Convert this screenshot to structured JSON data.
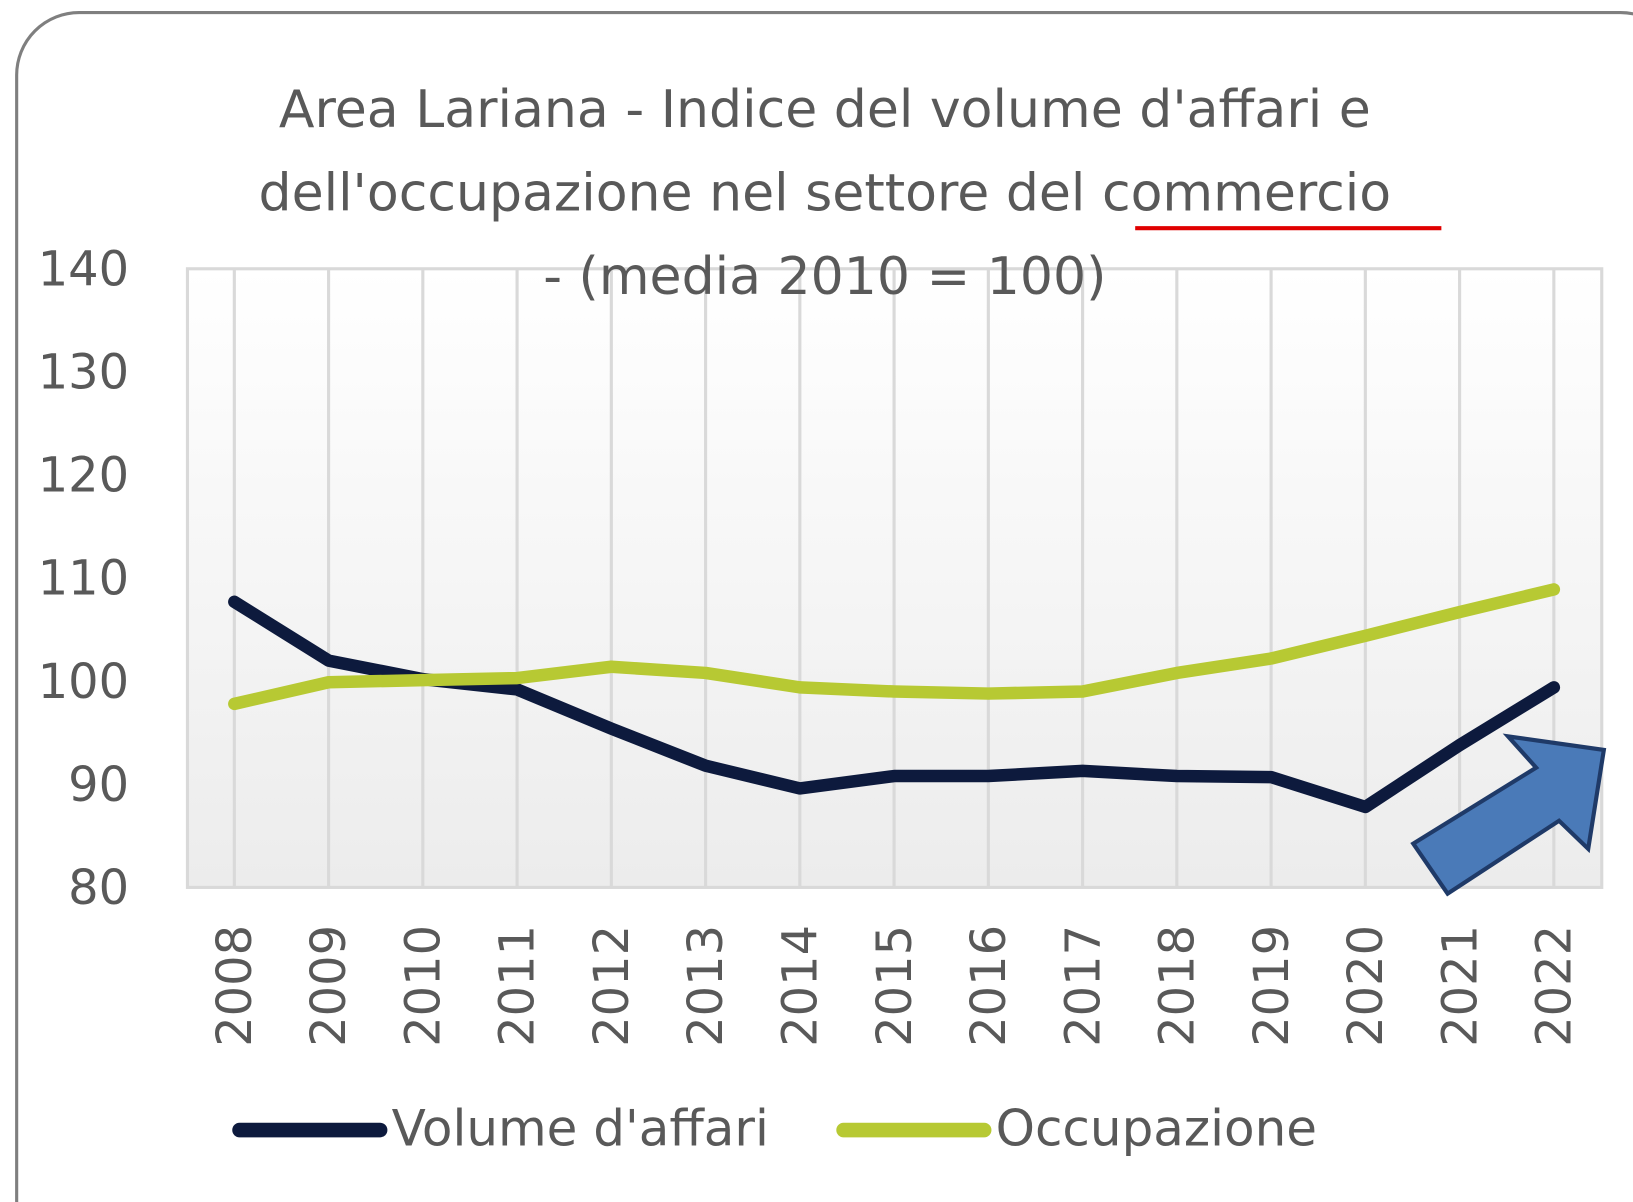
{
  "chart_data": {
    "type": "line",
    "title": [
      "Area Lariana - Indice del volume d'affari e",
      "dell'occupazione nel settore del commercio",
      "- (media 2010 = 100)"
    ],
    "categories": [
      "2008",
      "2009",
      "2010",
      "2011",
      "2012",
      "2013",
      "2014",
      "2015",
      "2016",
      "2017",
      "2018",
      "2019",
      "2020",
      "2021",
      "2022"
    ],
    "series": [
      {
        "name": "Volume d'affari",
        "color": "#0d1a3d",
        "values": [
          107.7,
          102,
          100.2,
          99.2,
          95.4,
          91.8,
          89.6,
          90.8,
          90.8,
          91.3,
          90.8,
          90.7,
          87.8,
          93.8,
          99.4
        ]
      },
      {
        "name": "Occupazione",
        "color": "#b7c933",
        "values": [
          97.8,
          99.9,
          100.1,
          100.3,
          101.4,
          100.8,
          99.4,
          99,
          98.8,
          99,
          100.8,
          102.2,
          104.4,
          106.7,
          108.9
        ]
      }
    ],
    "ylim": [
      80,
      140
    ],
    "yticks": [
      80,
      90,
      100,
      110,
      120,
      130,
      140
    ],
    "legend": "bottom"
  }
}
